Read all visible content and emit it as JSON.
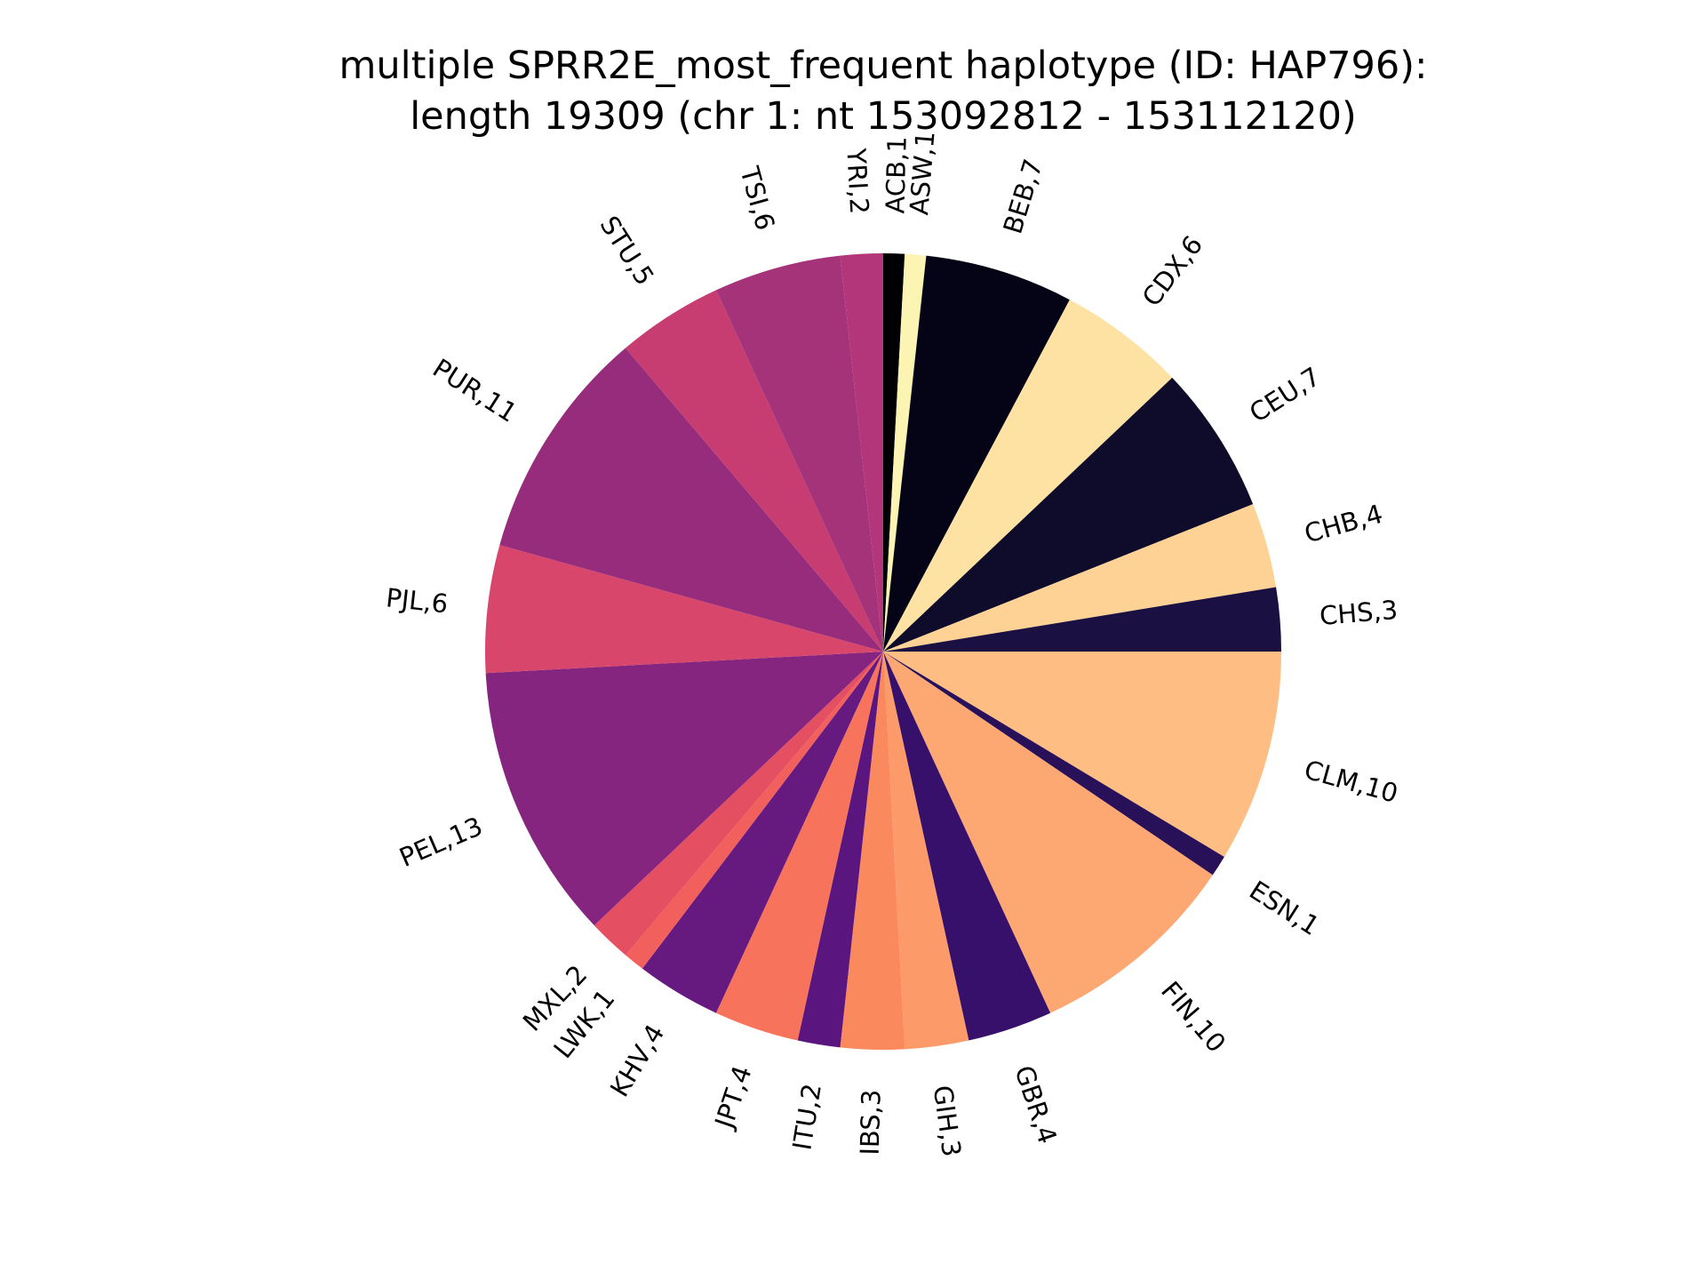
{
  "chart_data": {
    "type": "pie",
    "title": "multiple SPRR2E_most_frequent haplotype (ID: HAP796):",
    "subtitle": "length 19309 (chr 1: nt 153092812 - 153112120)",
    "start_angle_deg": 90,
    "direction": "clockwise",
    "slices": [
      {
        "label": "ACB,1",
        "value": 1,
        "color": "#000004"
      },
      {
        "label": "ASW,1",
        "value": 1,
        "color": "#fcf4b3"
      },
      {
        "label": "BEB,7",
        "value": 7,
        "color": "#050416"
      },
      {
        "label": "CDX,6",
        "value": 6,
        "color": "#fde2a4"
      },
      {
        "label": "CEU,7",
        "value": 7,
        "color": "#0e0b2b"
      },
      {
        "label": "CHB,4",
        "value": 4,
        "color": "#fed295"
      },
      {
        "label": "CHS,3",
        "value": 3,
        "color": "#1b1042"
      },
      {
        "label": "CLM,10",
        "value": 10,
        "color": "#febd82"
      },
      {
        "label": "ESN,1",
        "value": 1,
        "color": "#29115a"
      },
      {
        "label": "FIN,10",
        "value": 10,
        "color": "#fda872"
      },
      {
        "label": "GBR,4",
        "value": 4,
        "color": "#36106b"
      },
      {
        "label": "GIH,3",
        "value": 3,
        "color": "#fc9a6a"
      },
      {
        "label": "IBS,3",
        "value": 3,
        "color": "#fa8a5d"
      },
      {
        "label": "ITU,2",
        "value": 2,
        "color": "#5a167e"
      },
      {
        "label": "JPT,4",
        "value": 4,
        "color": "#f7735b"
      },
      {
        "label": "KHV,4",
        "value": 4,
        "color": "#661a7f"
      },
      {
        "label": "LWK,1",
        "value": 1,
        "color": "#f1605d"
      },
      {
        "label": "MXL,2",
        "value": 2,
        "color": "#e44f62"
      },
      {
        "label": "PEL,13",
        "value": 13,
        "color": "#86257f"
      },
      {
        "label": "PJL,6",
        "value": 6,
        "color": "#d8466b"
      },
      {
        "label": "PUR,11",
        "value": 11,
        "color": "#962c7b"
      },
      {
        "label": "STU,5",
        "value": 5,
        "color": "#c73d72"
      },
      {
        "label": "TSI,6",
        "value": 6,
        "color": "#a4337a"
      },
      {
        "label": "YRI,2",
        "value": 2,
        "color": "#b3367b"
      }
    ]
  }
}
